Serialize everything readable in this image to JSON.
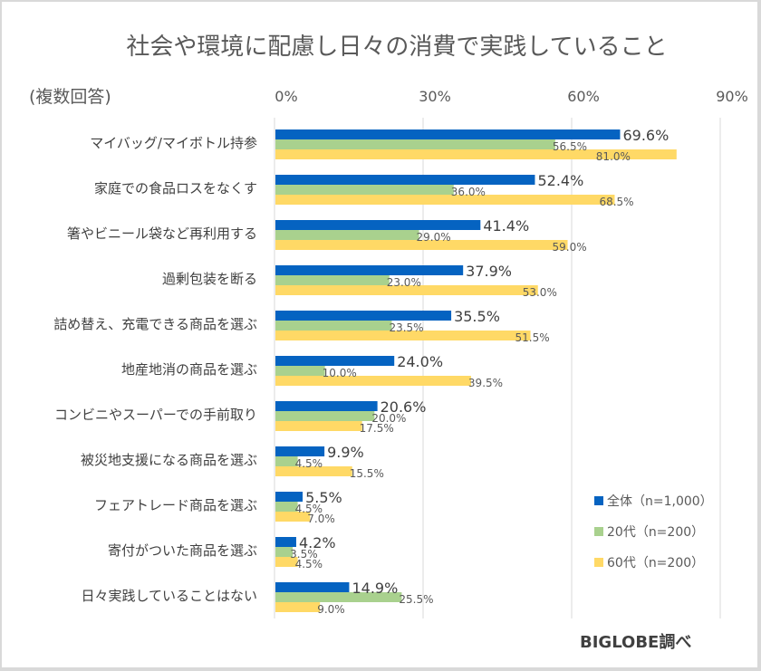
{
  "chart_data": {
    "type": "bar",
    "orientation": "horizontal",
    "title": "社会や環境に配慮し日々の消費で実践していること",
    "subtitle": "(複数回答)",
    "source": "BIGLOBE調べ",
    "xlim": [
      0,
      90
    ],
    "xticks": [
      0,
      30,
      60,
      90
    ],
    "xtick_labels": [
      "0%",
      "30%",
      "60%",
      "90%"
    ],
    "grid": true,
    "legend_position": "bottom-right",
    "categories": [
      "マイバッグ/マイボトル持参",
      "家庭での食品ロスをなくす",
      "箸やビニール袋など再利用する",
      "過剰包装を断る",
      "詰め替え、充電できる商品を選ぶ",
      "地産地消の商品を選ぶ",
      "コンビニやスーパーでの手前取り",
      "被災地支援になる商品を選ぶ",
      "フェアトレード商品を選ぶ",
      "寄付がついた商品を選ぶ",
      "日々実践していることはない"
    ],
    "series": [
      {
        "name": "全体（n=1,000）",
        "color": "#0563c1",
        "values": [
          69.6,
          52.4,
          41.4,
          37.9,
          35.5,
          24.0,
          20.6,
          9.9,
          5.5,
          4.2,
          14.9
        ],
        "labels": [
          "69.6%",
          "52.4%",
          "41.4%",
          "37.9%",
          "35.5%",
          "24.0%",
          "20.6%",
          "9.9%",
          "5.5%",
          "4.2%",
          "14.9%"
        ]
      },
      {
        "name": "20代（n=200）",
        "color": "#a9d18e",
        "values": [
          56.5,
          36.0,
          29.0,
          23.0,
          23.5,
          10.0,
          20.0,
          4.5,
          4.5,
          3.5,
          25.5
        ],
        "labels": [
          "56.5%",
          "36.0%",
          "29.0%",
          "23.0%",
          "23.5%",
          "10.0%",
          "20.0%",
          "4.5%",
          "4.5%",
          "3.5%",
          "25.5%"
        ]
      },
      {
        "name": "60代（n=200）",
        "color": "#ffd966",
        "values": [
          81.0,
          68.5,
          59.0,
          53.0,
          51.5,
          39.5,
          17.5,
          15.5,
          7.0,
          4.5,
          9.0
        ],
        "labels": [
          "81.0%",
          "68.5%",
          "59.0%",
          "53.0%",
          "51.5%",
          "39.5%",
          "17.5%",
          "15.5%",
          "7.0%",
          "4.5%",
          "9.0%"
        ]
      }
    ]
  }
}
